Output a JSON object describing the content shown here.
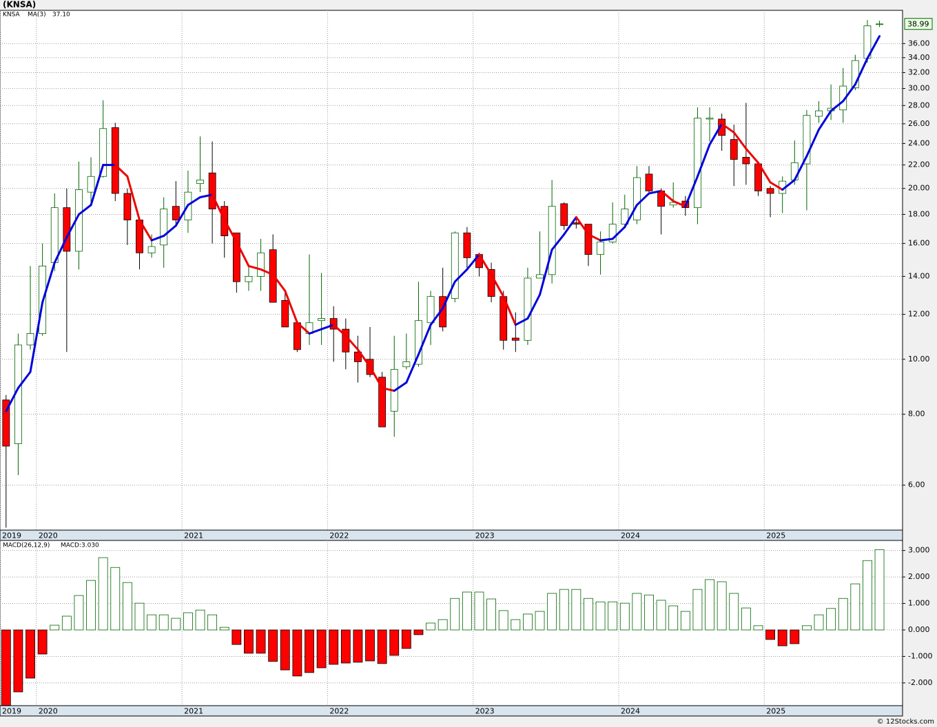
{
  "footer": "© 12Stocks.com",
  "chart_data": [
    {
      "type": "candlestick",
      "title": "(KNSA)",
      "symbol": "KNSA",
      "last_label": "38.99",
      "categories": [
        null,
        null,
        null,
        null,
        null,
        null,
        null,
        null,
        null,
        null,
        null,
        null,
        null,
        null,
        null,
        null,
        null,
        null,
        null,
        null,
        null,
        null,
        null,
        null,
        null,
        null,
        null,
        null,
        null,
        null,
        null,
        null,
        null,
        null,
        null,
        null,
        null,
        null,
        null,
        null,
        null,
        null,
        null,
        null,
        null,
        null,
        null,
        null,
        null,
        null,
        null,
        null,
        null,
        null,
        null,
        null,
        null,
        null,
        null,
        null,
        null,
        null,
        null,
        null,
        null,
        null,
        null,
        null,
        null,
        null,
        null,
        null,
        null
      ],
      "open": [
        8.48,
        7.1,
        10.6,
        11.1,
        14.8,
        18.5,
        15.5,
        19.7,
        21.0,
        25.6,
        19.6,
        17.6,
        15.4,
        15.9,
        18.6,
        17.6,
        20.4,
        21.3,
        18.6,
        16.7,
        13.7,
        14.0,
        15.6,
        12.7,
        11.6,
        11.1,
        11.7,
        11.8,
        11.3,
        10.3,
        10.0,
        9.3,
        8.1,
        9.7,
        9.8,
        11.6,
        12.9,
        12.8,
        16.7,
        15.3,
        14.4,
        12.9,
        10.9,
        10.8,
        13.9,
        14.1,
        18.8,
        17.4,
        17.3,
        15.3,
        16.1,
        17.3,
        17.6,
        21.2,
        19.8,
        18.7,
        19.0,
        18.5,
        26.5,
        26.5,
        24.4,
        22.7,
        22.1,
        20.0,
        19.6,
        20.7,
        22.1,
        26.8,
        27.4,
        27.5,
        30.1,
        33.9,
        38.95
      ],
      "high": [
        8.65,
        11.1,
        14.6,
        16.0,
        19.6,
        20.0,
        22.3,
        22.7,
        28.6,
        26.1,
        20.0,
        17.7,
        16.6,
        19.3,
        20.6,
        21.5,
        24.7,
        24.2,
        19.0,
        16.7,
        14.7,
        16.3,
        16.6,
        13.1,
        11.7,
        15.3,
        14.2,
        12.4,
        11.8,
        11.0,
        11.4,
        9.5,
        11.0,
        11.1,
        13.7,
        13.2,
        14.5,
        16.8,
        17.1,
        15.4,
        14.8,
        13.2,
        12.1,
        14.5,
        16.8,
        20.7,
        18.9,
        17.7,
        17.3,
        16.8,
        18.9,
        19.5,
        21.9,
        21.9,
        20.0,
        20.5,
        19.4,
        27.8,
        27.8,
        27.1,
        25.9,
        28.3,
        22.1,
        20.2,
        21.0,
        24.3,
        27.5,
        28.5,
        30.5,
        32.6,
        34.4,
        39.6,
        39.5
      ],
      "low": [
        5.05,
        6.25,
        10.4,
        11.0,
        14.3,
        10.3,
        14.4,
        18.8,
        20.9,
        19.0,
        15.9,
        14.4,
        15.1,
        14.5,
        17.3,
        16.7,
        19.7,
        16.0,
        15.1,
        13.1,
        13.2,
        13.2,
        12.6,
        11.4,
        10.3,
        10.6,
        10.6,
        9.9,
        9.6,
        9.1,
        9.3,
        7.6,
        7.3,
        9.6,
        9.7,
        10.6,
        11.2,
        12.6,
        14.5,
        14.0,
        12.6,
        10.4,
        10.3,
        10.6,
        13.9,
        13.6,
        16.9,
        17.0,
        14.6,
        14.1,
        16.0,
        17.0,
        17.3,
        19.7,
        16.6,
        18.5,
        17.9,
        17.3,
        24.2,
        23.3,
        20.2,
        20.3,
        19.4,
        17.8,
        18.1,
        20.3,
        18.3,
        26.1,
        26.4,
        26.1,
        29.8,
        33.3,
        38.5
      ],
      "close": [
        7.03,
        10.6,
        11.1,
        14.6,
        18.5,
        15.5,
        19.9,
        21.0,
        25.5,
        19.6,
        17.6,
        15.4,
        15.8,
        18.4,
        17.6,
        19.7,
        20.7,
        18.4,
        16.5,
        13.7,
        14.0,
        15.4,
        12.6,
        11.4,
        10.4,
        11.6,
        11.8,
        11.3,
        10.3,
        9.9,
        9.4,
        7.6,
        9.6,
        9.9,
        11.7,
        12.9,
        11.4,
        16.7,
        15.1,
        14.5,
        12.9,
        10.8,
        10.8,
        13.9,
        14.1,
        18.6,
        17.2,
        17.3,
        15.3,
        16.1,
        17.3,
        18.4,
        20.9,
        19.8,
        18.6,
        18.9,
        18.5,
        26.6,
        26.6,
        24.8,
        22.5,
        22.1,
        19.8,
        19.6,
        20.6,
        22.2,
        26.9,
        27.4,
        27.7,
        30.3,
        33.6,
        38.7,
        38.99
      ],
      "up_color": "#006400",
      "down_color": "#ff0000",
      "series": [
        {
          "name": "MA(3)",
          "color": "#0000dd",
          "down_color": "#ee0000",
          "last_label": "37.10",
          "values": [
            8.1,
            8.9,
            9.5,
            12.6,
            14.8,
            16.4,
            18.0,
            18.7,
            22.0,
            22.0,
            21.0,
            17.6,
            16.2,
            16.5,
            17.2,
            18.7,
            19.3,
            19.5,
            17.6,
            16.1,
            14.6,
            14.4,
            14.1,
            13.2,
            11.6,
            11.1,
            11.3,
            11.5,
            11.0,
            10.4,
            9.7,
            8.9,
            8.8,
            9.1,
            10.2,
            11.5,
            12.3,
            13.7,
            14.4,
            15.3,
            14.1,
            12.9,
            11.5,
            11.8,
            13.0,
            15.6,
            16.6,
            17.8,
            16.6,
            16.2,
            16.3,
            17.1,
            18.7,
            19.6,
            19.8,
            19.0,
            18.6,
            21.0,
            23.9,
            26.0,
            25.1,
            23.5,
            22.2,
            20.5,
            19.9,
            20.7,
            22.8,
            25.4,
            27.4,
            28.5,
            30.5,
            33.9,
            37.1
          ]
        }
      ],
      "log_scale": true,
      "grid": true,
      "xlim": [
        -0.5,
        73.9
      ],
      "xticks": [
        {
          "value": -0.5,
          "label": "2019"
        },
        {
          "value": 2.5,
          "label": "2020"
        },
        {
          "value": 14.5,
          "label": "2021"
        },
        {
          "value": 26.5,
          "label": "2022"
        },
        {
          "value": 38.5,
          "label": "2023"
        },
        {
          "value": 50.5,
          "label": "2024"
        },
        {
          "value": 62.5,
          "label": "2025"
        }
      ],
      "ylim": [
        5.0,
        41.2
      ],
      "yticks": [
        {
          "value": 6,
          "label": "6.00"
        },
        {
          "value": 8,
          "label": "8.00"
        },
        {
          "value": 10,
          "label": "10.00"
        },
        {
          "value": 12,
          "label": "12.00"
        },
        {
          "value": 14,
          "label": "14.00"
        },
        {
          "value": 16,
          "label": "16.00"
        },
        {
          "value": 18,
          "label": "18.00"
        },
        {
          "value": 20,
          "label": "20.00"
        },
        {
          "value": 22,
          "label": "22.00"
        },
        {
          "value": 24,
          "label": "24.00"
        },
        {
          "value": 26,
          "label": "26.00"
        },
        {
          "value": 28,
          "label": "28.00"
        },
        {
          "value": 30,
          "label": "30.00"
        },
        {
          "value": 32,
          "label": "32.00"
        },
        {
          "value": 34,
          "label": "34.00"
        },
        {
          "value": 36,
          "label": "36.00"
        }
      ]
    },
    {
      "type": "bar",
      "title": "MACD(26,12,9)",
      "subtitle": "MACD:3.030",
      "up_color": "#006400",
      "down_color": "#ff0000",
      "values": [
        -2.85,
        -2.34,
        -1.82,
        -0.91,
        0.18,
        0.52,
        1.3,
        1.87,
        2.73,
        2.36,
        1.79,
        1.01,
        0.57,
        0.57,
        0.44,
        0.65,
        0.75,
        0.57,
        0.1,
        -0.55,
        -0.88,
        -0.88,
        -1.19,
        -1.51,
        -1.74,
        -1.61,
        -1.43,
        -1.3,
        -1.25,
        -1.22,
        -1.17,
        -1.27,
        -0.96,
        -0.7,
        -0.18,
        0.26,
        0.39,
        1.19,
        1.43,
        1.43,
        1.17,
        0.73,
        0.39,
        0.6,
        0.7,
        1.38,
        1.53,
        1.53,
        1.19,
        1.06,
        1.06,
        1.01,
        1.38,
        1.32,
        1.12,
        0.91,
        0.7,
        1.53,
        1.9,
        1.82,
        1.38,
        0.83,
        0.16,
        -0.36,
        -0.6,
        -0.52,
        0.16,
        0.57,
        0.81,
        1.19,
        1.74,
        2.62,
        3.03
      ],
      "grid": true,
      "xlim": [
        -0.5,
        73.9
      ],
      "xticks": [
        {
          "value": -0.5,
          "label": "2019"
        },
        {
          "value": 2.5,
          "label": "2020"
        },
        {
          "value": 14.5,
          "label": "2021"
        },
        {
          "value": 26.5,
          "label": "2022"
        },
        {
          "value": 38.5,
          "label": "2023"
        },
        {
          "value": 50.5,
          "label": "2024"
        },
        {
          "value": 62.5,
          "label": "2025"
        }
      ],
      "ylim": [
        -2.86,
        3.38
      ],
      "yticks": [
        {
          "value": 3,
          "label": "3.000"
        },
        {
          "value": 2,
          "label": "2.000"
        },
        {
          "value": 1,
          "label": "1.000"
        },
        {
          "value": 0,
          "label": "0.000"
        },
        {
          "value": -1,
          "label": "-1.000"
        },
        {
          "value": -2,
          "label": "-2.000"
        }
      ]
    }
  ]
}
